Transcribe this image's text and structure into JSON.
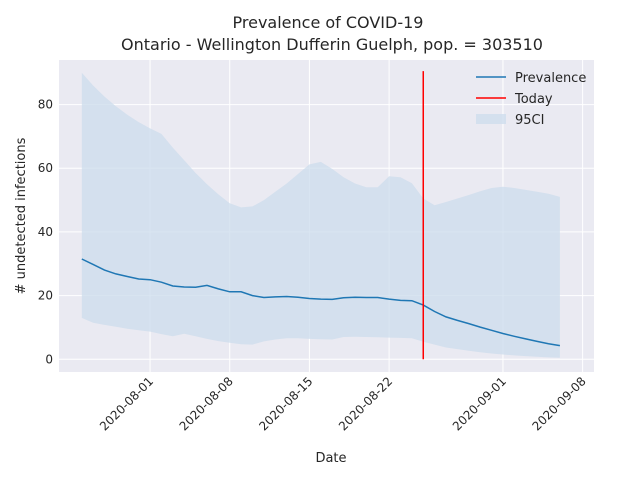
{
  "chart_data": {
    "type": "line",
    "title": "Prevalence of COVID-19",
    "subtitle": "Ontario - Wellington Dufferin Guelph, pop. = 303510",
    "xlabel": "Date",
    "ylabel": "# undetected infections",
    "xlim": [
      "2020-07-24",
      "2020-09-09"
    ],
    "ylim": [
      -4,
      94
    ],
    "x_ticks": [
      "2020-08-01",
      "2020-08-08",
      "2020-08-15",
      "2020-08-22",
      "2020-09-01",
      "2020-09-08"
    ],
    "y_ticks": [
      0,
      20,
      40,
      60,
      80
    ],
    "grid": true,
    "legend_position": "upper right",
    "colors": {
      "background": "#eaeaf2",
      "grid": "#ffffff",
      "prevalence": "#1f77b4",
      "today": "#ff0000",
      "ci_fill": "#ccdcec"
    },
    "series": [
      {
        "name": "Prevalence",
        "dates": [
          "2020-07-26",
          "2020-07-27",
          "2020-07-28",
          "2020-07-29",
          "2020-07-30",
          "2020-07-31",
          "2020-08-01",
          "2020-08-02",
          "2020-08-03",
          "2020-08-04",
          "2020-08-05",
          "2020-08-06",
          "2020-08-07",
          "2020-08-08",
          "2020-08-09",
          "2020-08-10",
          "2020-08-11",
          "2020-08-12",
          "2020-08-13",
          "2020-08-14",
          "2020-08-15",
          "2020-08-16",
          "2020-08-17",
          "2020-08-18",
          "2020-08-19",
          "2020-08-20",
          "2020-08-21",
          "2020-08-22",
          "2020-08-23",
          "2020-08-24",
          "2020-08-25",
          "2020-08-26",
          "2020-08-27",
          "2020-08-28",
          "2020-08-29",
          "2020-08-30",
          "2020-08-31",
          "2020-09-01",
          "2020-09-02",
          "2020-09-03",
          "2020-09-04",
          "2020-09-05",
          "2020-09-06"
        ],
        "values": [
          31.5,
          29.8,
          28.0,
          26.8,
          26.0,
          25.2,
          25.0,
          24.2,
          23.0,
          22.7,
          22.6,
          23.2,
          22.1,
          21.2,
          21.2,
          20.0,
          19.4,
          19.6,
          19.7,
          19.5,
          19.1,
          18.9,
          18.8,
          19.3,
          19.5,
          19.4,
          19.4,
          18.9,
          18.5,
          18.4,
          17.0,
          15.0,
          13.3,
          12.2,
          11.2,
          10.1,
          9.1,
          8.1,
          7.2,
          6.4,
          5.6,
          4.9,
          4.3
        ]
      },
      {
        "name": "95CI",
        "dates": [
          "2020-07-26",
          "2020-07-27",
          "2020-07-28",
          "2020-07-29",
          "2020-07-30",
          "2020-07-31",
          "2020-08-01",
          "2020-08-02",
          "2020-08-03",
          "2020-08-04",
          "2020-08-05",
          "2020-08-06",
          "2020-08-07",
          "2020-08-08",
          "2020-08-09",
          "2020-08-10",
          "2020-08-11",
          "2020-08-12",
          "2020-08-13",
          "2020-08-14",
          "2020-08-15",
          "2020-08-16",
          "2020-08-17",
          "2020-08-18",
          "2020-08-19",
          "2020-08-20",
          "2020-08-21",
          "2020-08-22",
          "2020-08-23",
          "2020-08-24",
          "2020-08-25",
          "2020-08-26",
          "2020-08-27",
          "2020-08-28",
          "2020-08-29",
          "2020-08-30",
          "2020-08-31",
          "2020-09-01",
          "2020-09-02",
          "2020-09-03",
          "2020-09-04",
          "2020-09-05",
          "2020-09-06"
        ],
        "lower": [
          13.0,
          11.5,
          10.8,
          10.2,
          9.6,
          9.1,
          8.7,
          7.9,
          7.2,
          8.0,
          7.2,
          6.4,
          5.7,
          5.2,
          4.7,
          4.6,
          5.6,
          6.2,
          6.6,
          6.6,
          6.4,
          6.3,
          6.2,
          7.0,
          7.1,
          7.0,
          6.9,
          6.8,
          6.7,
          6.6,
          5.5,
          4.6,
          3.7,
          3.2,
          2.7,
          2.2,
          1.8,
          1.5,
          1.2,
          1.0,
          0.8,
          0.6,
          0.5
        ],
        "upper": [
          90.0,
          86.0,
          82.5,
          79.5,
          76.8,
          74.5,
          72.5,
          70.8,
          66.5,
          62.5,
          58.5,
          55.0,
          51.8,
          49.0,
          47.7,
          48.0,
          50.0,
          52.6,
          55.2,
          58.2,
          61.2,
          62.0,
          59.8,
          57.2,
          55.2,
          54.0,
          54.0,
          57.5,
          57.2,
          55.3,
          50.5,
          48.4,
          49.4,
          50.5,
          51.6,
          52.8,
          53.8,
          54.2,
          53.8,
          53.2,
          52.6,
          52.0,
          51.0
        ]
      }
    ],
    "today": "2020-08-25",
    "today_ylim": [
      0,
      90.5
    ],
    "legend": [
      {
        "label": "Prevalence",
        "kind": "line",
        "color": "#1f77b4"
      },
      {
        "label": "Today",
        "kind": "line",
        "color": "#ff0000"
      },
      {
        "label": "95CI",
        "kind": "fill",
        "color": "#ccdcec"
      }
    ]
  }
}
